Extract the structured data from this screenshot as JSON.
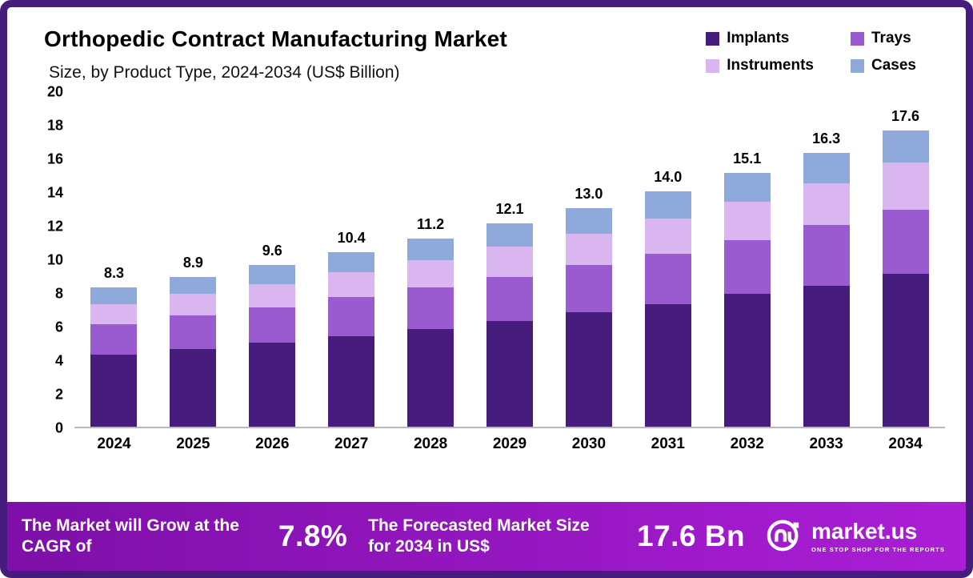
{
  "header": {
    "title": "Orthopedic Contract Manufacturing Market",
    "subtitle": "Size, by Product Type, 2024-2034 (US$ Billion)"
  },
  "legend": [
    {
      "label": "Implants",
      "color": "#461d7c"
    },
    {
      "label": "Trays",
      "color": "#9a5ad0"
    },
    {
      "label": "Instruments",
      "color": "#d9b6ef"
    },
    {
      "label": "Cases",
      "color": "#8fa9db"
    }
  ],
  "chart_data": {
    "type": "bar",
    "stacked": true,
    "title": "Orthopedic Contract Manufacturing Market Size, by Product Type, 2024-2034 (US$ Billion)",
    "xlabel": "",
    "ylabel": "US$ Billion",
    "ylim": [
      0,
      20
    ],
    "yticks": [
      0,
      2,
      4,
      6,
      8,
      10,
      12,
      14,
      16,
      18,
      20
    ],
    "grid": false,
    "legend_position": "top-right",
    "categories": [
      "2024",
      "2025",
      "2026",
      "2027",
      "2028",
      "2029",
      "2030",
      "2031",
      "2032",
      "2033",
      "2034"
    ],
    "series": [
      {
        "name": "Implants",
        "color": "#461d7c",
        "values": [
          4.3,
          4.6,
          5.0,
          5.4,
          5.8,
          6.3,
          6.8,
          7.3,
          7.9,
          8.4,
          9.1
        ]
      },
      {
        "name": "Trays",
        "color": "#9a5ad0",
        "values": [
          1.8,
          2.0,
          2.1,
          2.3,
          2.5,
          2.6,
          2.8,
          3.0,
          3.2,
          3.6,
          3.8
        ]
      },
      {
        "name": "Instruments",
        "color": "#d9b6ef",
        "values": [
          1.2,
          1.3,
          1.4,
          1.5,
          1.6,
          1.8,
          1.9,
          2.1,
          2.3,
          2.5,
          2.8
        ]
      },
      {
        "name": "Cases",
        "color": "#8fa9db",
        "values": [
          1.0,
          1.0,
          1.1,
          1.2,
          1.3,
          1.4,
          1.5,
          1.6,
          1.7,
          1.8,
          1.9
        ]
      }
    ],
    "totals": [
      8.3,
      8.9,
      9.6,
      10.4,
      11.2,
      12.1,
      13.0,
      14.0,
      15.1,
      16.3,
      17.6
    ],
    "total_labels": [
      "8.3",
      "8.9",
      "9.6",
      "10.4",
      "11.2",
      "12.1",
      "13.0",
      "14.0",
      "15.1",
      "16.3",
      "17.6"
    ]
  },
  "footer": {
    "cagr_label": "The Market will Grow at the CAGR of",
    "cagr_value": "7.8%",
    "forecast_label": "The Forecasted Market Size for 2034 in US$",
    "forecast_value": "17.6 Bn",
    "brand": "market.us",
    "brand_tagline": "ONE STOP SHOP FOR THE REPORTS"
  },
  "colors": {
    "frame_border": "#461d7c",
    "footer_gradient_start": "#7d0fa8",
    "footer_gradient_end": "#ab1ed6",
    "axis_line": "#b9b9b9"
  }
}
